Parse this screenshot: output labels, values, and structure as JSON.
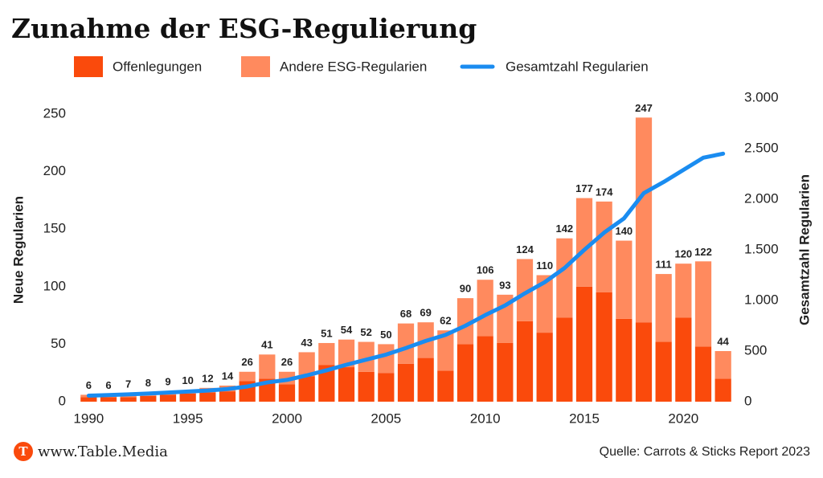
{
  "chart_data": {
    "type": "bar",
    "stacked": true,
    "title": "Zunahme der ESG-Regulierung",
    "y_label": "Neue Regularien",
    "y2_label": "Gesamtzahl Regularien",
    "source": "Quelle: Carrots & Sticks Report 2023",
    "brand": "www.Table.Media",
    "brand_icon": "T",
    "x": [
      1990,
      1991,
      1992,
      1993,
      1994,
      1995,
      1996,
      1997,
      1998,
      1999,
      2000,
      2001,
      2002,
      2003,
      2004,
      2005,
      2006,
      2007,
      2008,
      2009,
      2010,
      2011,
      2012,
      2013,
      2014,
      2015,
      2016,
      2017,
      2018,
      2019,
      2020,
      2021,
      2022
    ],
    "xlim": [
      1989.5,
      2022.5
    ],
    "xticks": [
      1990,
      1995,
      2000,
      2005,
      2010,
      2015,
      2020
    ],
    "ylim": [
      0,
      264
    ],
    "yticks": [
      0,
      50,
      100,
      150,
      200,
      250
    ],
    "y2lim": [
      0,
      3000
    ],
    "y2ticks": [
      0,
      500,
      {
        "value": 1000,
        "label": "1.000"
      },
      {
        "value": 1500,
        "label": "1.500"
      },
      {
        "value": 2000,
        "label": "2.000"
      },
      {
        "value": 2500,
        "label": "2.500"
      },
      {
        "value": 3000,
        "label": "3.000"
      }
    ],
    "series": [
      {
        "name": "Offenlegungen",
        "color": "#fa4a0c",
        "values": [
          4,
          4,
          4,
          5,
          6,
          7,
          8,
          9,
          18,
          20,
          15,
          22,
          32,
          30,
          26,
          25,
          33,
          38,
          27,
          50,
          57,
          51,
          70,
          60,
          73,
          100,
          95,
          72,
          69,
          52,
          73,
          48,
          20
        ]
      },
      {
        "name": "Andere ESG-Regularien",
        "color": "#ff8a5e",
        "values": [
          2,
          2,
          3,
          3,
          3,
          3,
          4,
          5,
          8,
          21,
          11,
          21,
          19,
          24,
          26,
          25,
          35,
          31,
          35,
          40,
          49,
          42,
          54,
          50,
          69,
          77,
          79,
          68,
          178,
          59,
          47,
          74,
          24
        ]
      },
      {
        "name": "Gesamtzahl Regularien",
        "color": "#1a8cf0",
        "type": "line",
        "axis": "y2",
        "values": [
          60,
          65,
          72,
          80,
          90,
          100,
          110,
          125,
          150,
          190,
          215,
          260,
          310,
          365,
          415,
          465,
          530,
          600,
          660,
          750,
          855,
          950,
          1070,
          1180,
          1320,
          1500,
          1670,
          1810,
          2060,
          2170,
          2290,
          2410,
          2450
        ]
      }
    ],
    "totals": [
      6,
      6,
      7,
      8,
      9,
      10,
      12,
      14,
      26,
      41,
      26,
      43,
      51,
      54,
      52,
      50,
      68,
      69,
      62,
      90,
      106,
      93,
      124,
      110,
      142,
      177,
      174,
      140,
      247,
      111,
      120,
      122,
      44
    ]
  }
}
